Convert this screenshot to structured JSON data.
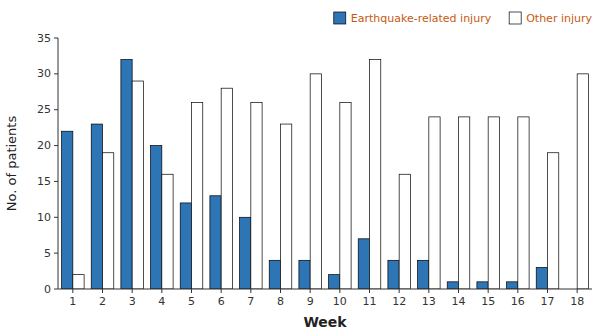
{
  "chart_data": {
    "type": "bar",
    "xlabel": "Week",
    "ylabel": "No. of patients",
    "categories": [
      "1",
      "2",
      "3",
      "4",
      "5",
      "6",
      "7",
      "8",
      "9",
      "10",
      "11",
      "12",
      "13",
      "14",
      "15",
      "16",
      "17",
      "18"
    ],
    "series": [
      {
        "name": "Earthquake-related injury",
        "color": "#2e75b6",
        "values": [
          22,
          23,
          32,
          20,
          12,
          13,
          10,
          4,
          4,
          2,
          7,
          4,
          4,
          1,
          1,
          1,
          3,
          0
        ]
      },
      {
        "name": "Other injury",
        "color": "#ffffff",
        "values": [
          2,
          19,
          29,
          16,
          26,
          28,
          26,
          23,
          30,
          26,
          32,
          16,
          24,
          24,
          24,
          24,
          19,
          30
        ]
      }
    ],
    "ylim": [
      0,
      35
    ],
    "yticks": [
      0,
      5,
      10,
      15,
      20,
      25,
      30,
      35
    ],
    "grid": false,
    "legend": "upper right"
  }
}
